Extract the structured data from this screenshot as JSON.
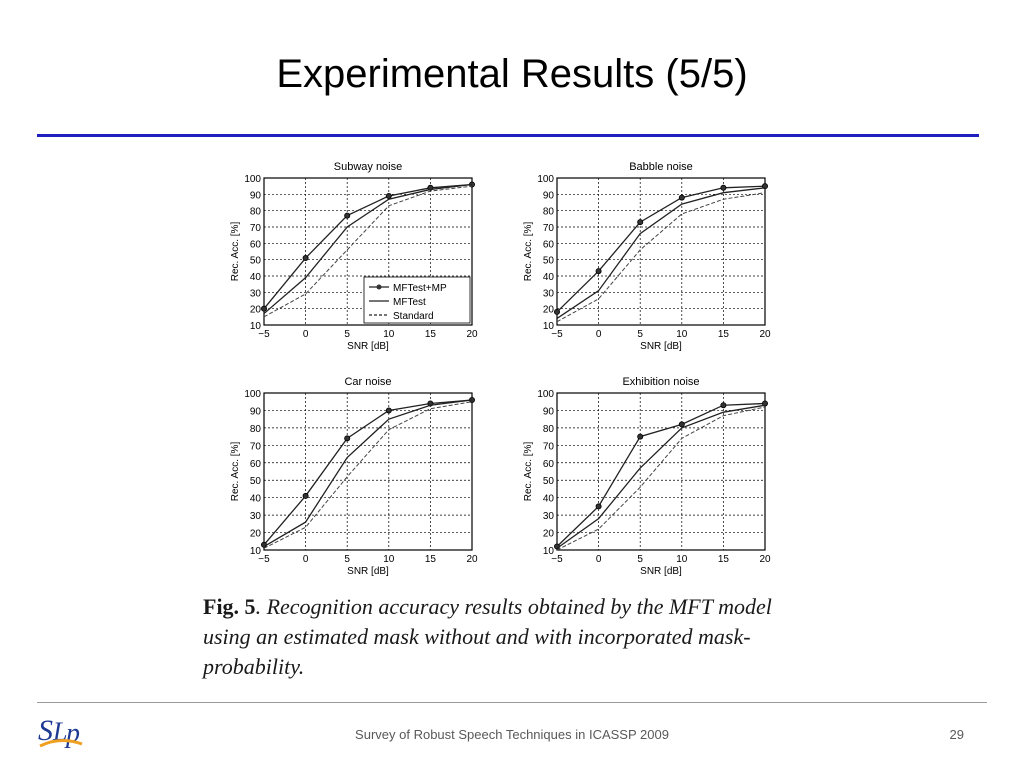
{
  "slide": {
    "title": "Experimental Results (5/5)",
    "footer": "Survey of Robust Speech Techniques in ICASSP 2009",
    "page_number": "29",
    "accent_color": "#1f1fbf"
  },
  "caption": {
    "label": "Fig. 5",
    "text": ". Recognition accuracy results obtained by the MFT model using an estimated mask without and with incorporated mask-probability."
  },
  "logo": {
    "text": "SLP",
    "icon": "slp-lab-logo"
  },
  "chart_data": [
    {
      "type": "line",
      "title": "Subway noise",
      "xlabel": "SNR [dB]",
      "ylabel": "Rec. Acc. [%]",
      "x": [
        -5,
        0,
        5,
        10,
        15,
        20
      ],
      "xticks": [
        "−5",
        "0",
        "5",
        "10",
        "15",
        "20"
      ],
      "yticks": [
        10,
        20,
        30,
        40,
        50,
        60,
        70,
        80,
        90,
        100
      ],
      "xlim": [
        -5,
        20
      ],
      "ylim": [
        10,
        100
      ],
      "grid": true,
      "legend": {
        "position": "lower-right",
        "show": true
      },
      "series": [
        {
          "name": "MFTest+MP",
          "style": "solid-marker",
          "values": [
            20,
            51,
            77,
            89,
            94,
            96
          ]
        },
        {
          "name": "MFTest",
          "style": "solid",
          "values": [
            17,
            39,
            70,
            87,
            93,
            96
          ]
        },
        {
          "name": "Standard",
          "style": "dashed",
          "values": [
            15,
            29,
            56,
            83,
            92,
            95
          ]
        }
      ]
    },
    {
      "type": "line",
      "title": "Babble noise",
      "xlabel": "SNR [dB]",
      "ylabel": "Rec. Acc. [%]",
      "x": [
        -5,
        0,
        5,
        10,
        15,
        20
      ],
      "xticks": [
        "−5",
        "0",
        "5",
        "10",
        "15",
        "20"
      ],
      "yticks": [
        10,
        20,
        30,
        40,
        50,
        60,
        70,
        80,
        90,
        100
      ],
      "xlim": [
        -5,
        20
      ],
      "ylim": [
        10,
        100
      ],
      "grid": true,
      "legend": {
        "show": false
      },
      "series": [
        {
          "name": "MFTest+MP",
          "style": "solid-marker",
          "values": [
            18,
            43,
            73,
            88,
            94,
            95
          ]
        },
        {
          "name": "MFTest",
          "style": "solid",
          "values": [
            14,
            31,
            66,
            84,
            91,
            94
          ]
        },
        {
          "name": "Standard",
          "style": "dashed",
          "values": [
            12,
            26,
            56,
            78,
            87,
            91
          ]
        }
      ]
    },
    {
      "type": "line",
      "title": "Car noise",
      "xlabel": "SNR [dB]",
      "ylabel": "Rec. Acc. [%]",
      "x": [
        -5,
        0,
        5,
        10,
        15,
        20
      ],
      "xticks": [
        "−5",
        "0",
        "5",
        "10",
        "15",
        "20"
      ],
      "yticks": [
        10,
        20,
        30,
        40,
        50,
        60,
        70,
        80,
        90,
        100
      ],
      "xlim": [
        -5,
        20
      ],
      "ylim": [
        10,
        100
      ],
      "grid": true,
      "legend": {
        "show": false
      },
      "series": [
        {
          "name": "MFTest+MP",
          "style": "solid-marker",
          "values": [
            13,
            41,
            74,
            90,
            94,
            96
          ]
        },
        {
          "name": "MFTest",
          "style": "solid",
          "values": [
            12,
            26,
            63,
            85,
            93,
            96
          ]
        },
        {
          "name": "Standard",
          "style": "dashed",
          "values": [
            11,
            23,
            52,
            79,
            91,
            95
          ]
        }
      ]
    },
    {
      "type": "line",
      "title": "Exhibition noise",
      "xlabel": "SNR [dB]",
      "ylabel": "Rec. Acc. [%]",
      "x": [
        -5,
        0,
        5,
        10,
        15,
        20
      ],
      "xticks": [
        "−5",
        "0",
        "5",
        "10",
        "15",
        "20"
      ],
      "yticks": [
        10,
        20,
        30,
        40,
        50,
        60,
        70,
        80,
        90,
        100
      ],
      "xlim": [
        -5,
        20
      ],
      "ylim": [
        10,
        100
      ],
      "grid": true,
      "legend": {
        "show": false
      },
      "series": [
        {
          "name": "MFTest+MP",
          "style": "solid-marker",
          "values": [
            12,
            35,
            75,
            82,
            93,
            94
          ]
        },
        {
          "name": "MFTest",
          "style": "solid",
          "values": [
            11,
            28,
            57,
            80,
            89,
            93
          ]
        },
        {
          "name": "Standard",
          "style": "dashed",
          "values": [
            10,
            22,
            46,
            74,
            87,
            92
          ]
        }
      ]
    }
  ]
}
